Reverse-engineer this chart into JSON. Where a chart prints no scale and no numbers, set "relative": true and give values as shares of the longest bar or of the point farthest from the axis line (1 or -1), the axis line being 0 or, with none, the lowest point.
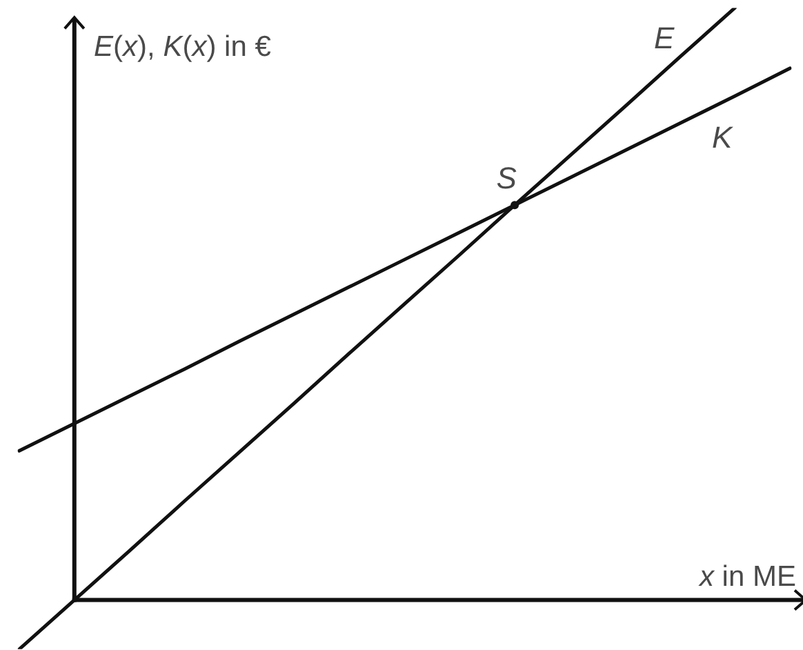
{
  "chart_data": {
    "type": "line",
    "xlabel": "x in ME",
    "ylabel": "E(x), K(x) in €",
    "relative": true,
    "categories": [
      null,
      null,
      null,
      null,
      null,
      null,
      null,
      null,
      null,
      null,
      null,
      null,
      null,
      null,
      null
    ],
    "series": [
      {
        "name": "E",
        "color": "#111111",
        "values": [
          -0.083,
          0,
          0.083,
          0.167,
          0.25,
          0.333,
          0.417,
          0.5,
          0.583,
          0.667,
          0.75,
          0.833,
          0.917,
          1,
          null
        ]
      },
      {
        "name": "K",
        "color": "#111111",
        "values": [
          0.252,
          0.298,
          0.344,
          0.39,
          0.437,
          0.483,
          0.529,
          0.575,
          0.621,
          0.667,
          0.713,
          0.759,
          0.805,
          0.851,
          0.898
        ]
      }
    ],
    "annotations": [
      {
        "text": "S",
        "y": 0.667
      }
    ],
    "marker": "none",
    "line_style": "solid"
  }
}
